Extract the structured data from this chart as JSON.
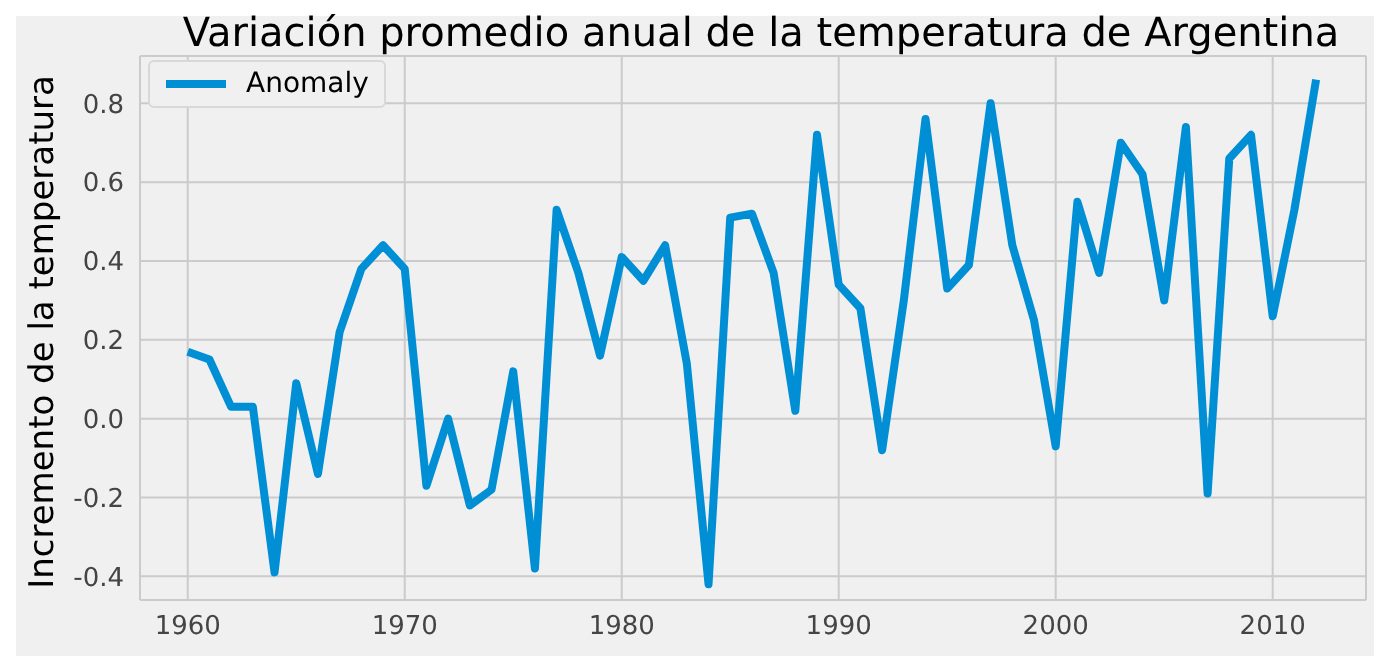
{
  "chart_data": {
    "type": "line",
    "title": "Variación promedio anual de la temperatura de Argentina",
    "ylabel": "Incremento de la temperatura",
    "x": [
      1960,
      1961,
      1962,
      1963,
      1964,
      1965,
      1966,
      1967,
      1968,
      1969,
      1970,
      1971,
      1972,
      1973,
      1974,
      1975,
      1976,
      1977,
      1978,
      1979,
      1980,
      1981,
      1982,
      1983,
      1984,
      1985,
      1986,
      1987,
      1988,
      1989,
      1990,
      1991,
      1992,
      1993,
      1994,
      1995,
      1996,
      1997,
      1998,
      1999,
      2000,
      2001,
      2002,
      2003,
      2004,
      2005,
      2006,
      2007,
      2008,
      2009,
      2010,
      2011,
      2012
    ],
    "series": [
      {
        "name": "Anomaly",
        "color": "#008fd5",
        "values": [
          0.17,
          0.15,
          0.03,
          0.03,
          -0.39,
          0.09,
          -0.14,
          0.22,
          0.38,
          0.44,
          0.38,
          -0.17,
          0.0,
          -0.22,
          -0.18,
          0.12,
          -0.38,
          0.53,
          0.37,
          0.16,
          0.41,
          0.35,
          0.44,
          0.14,
          -0.42,
          0.51,
          0.52,
          0.37,
          0.02,
          0.72,
          0.34,
          0.28,
          -0.08,
          0.3,
          0.76,
          0.33,
          0.39,
          0.8,
          0.44,
          0.25,
          -0.07,
          0.55,
          0.37,
          0.7,
          0.62,
          0.3,
          0.74,
          -0.19,
          0.66,
          0.72,
          0.26,
          0.53,
          0.86
        ]
      }
    ],
    "xlim": [
      1957.8,
      2014.3
    ],
    "xticks": [
      1960,
      1970,
      1980,
      1990,
      2000,
      2010
    ],
    "ylim": [
      -0.46,
      0.92
    ],
    "yticks": [
      -0.4,
      -0.2,
      {
        "value": 0,
        "label": "0.0"
      },
      0.2,
      0.4,
      0.6,
      0.8
    ],
    "grid": true,
    "legend": "top left",
    "marker": "none",
    "line_style": "solid"
  }
}
